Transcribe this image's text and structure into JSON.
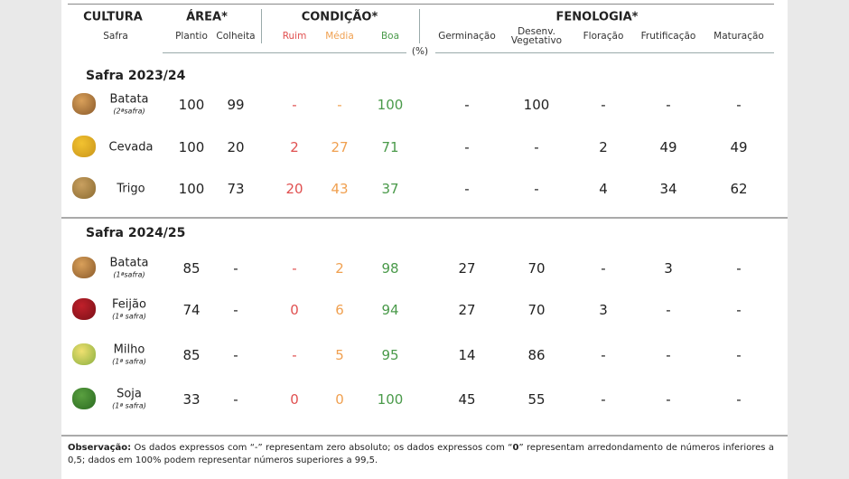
{
  "header": {
    "groups": [
      {
        "label": "CULTURA",
        "subs": [
          "Safra"
        ]
      },
      {
        "label": "ÁREA*",
        "subs": [
          "Plantio",
          "Colheita"
        ]
      },
      {
        "label": "CONDIÇÃO*",
        "subs": [
          "Ruim",
          "Média",
          "Boa"
        ]
      },
      {
        "label": "FENOLOGIA*",
        "subs": [
          "Germinação",
          "Desenv. Vegetativo",
          "Floração",
          "Frutificação",
          "Maturação"
        ]
      }
    ],
    "unit": "(%)"
  },
  "sections": [
    {
      "title": "Safra 2023/24",
      "rows": [
        {
          "crop": "Batata",
          "note": "(2ªsafra)",
          "values": [
            100,
            99,
            "-",
            "-",
            100,
            "-",
            100,
            "-",
            "-",
            "-"
          ]
        },
        {
          "crop": "Cevada",
          "values": [
            100,
            20,
            2,
            27,
            71,
            "-",
            "-",
            2,
            49,
            49
          ]
        },
        {
          "crop": "Trigo",
          "values": [
            100,
            73,
            20,
            43,
            37,
            "-",
            "-",
            4,
            34,
            62
          ]
        }
      ]
    },
    {
      "title": "Safra 2024/25",
      "rows": [
        {
          "crop": "Batata",
          "note": "(1ªsafra)",
          "values": [
            85,
            "-",
            "-",
            2,
            98,
            27,
            70,
            "-",
            3,
            "-"
          ]
        },
        {
          "crop": "Feijão",
          "note": "(1ª safra)",
          "values": [
            74,
            "-",
            0,
            6,
            94,
            27,
            70,
            3,
            "-",
            "-"
          ]
        },
        {
          "crop": "Milho",
          "note": "(1ª safra)",
          "values": [
            85,
            "-",
            "-",
            5,
            95,
            14,
            86,
            "-",
            "-",
            "-"
          ]
        },
        {
          "crop": "Soja",
          "note": "(1ª safra)",
          "values": [
            33,
            "-",
            0,
            0,
            100,
            45,
            55,
            "-",
            "-",
            "-"
          ]
        }
      ]
    }
  ],
  "footnote": [
    "Observação:",
    " Os dados expressos com “-” representam zero absoluto; os dados expressos com “",
    "0",
    "” representam arredondamento de números inferiores a 0,5; dados em 100% podem representar números superiores a 99,5."
  ]
}
